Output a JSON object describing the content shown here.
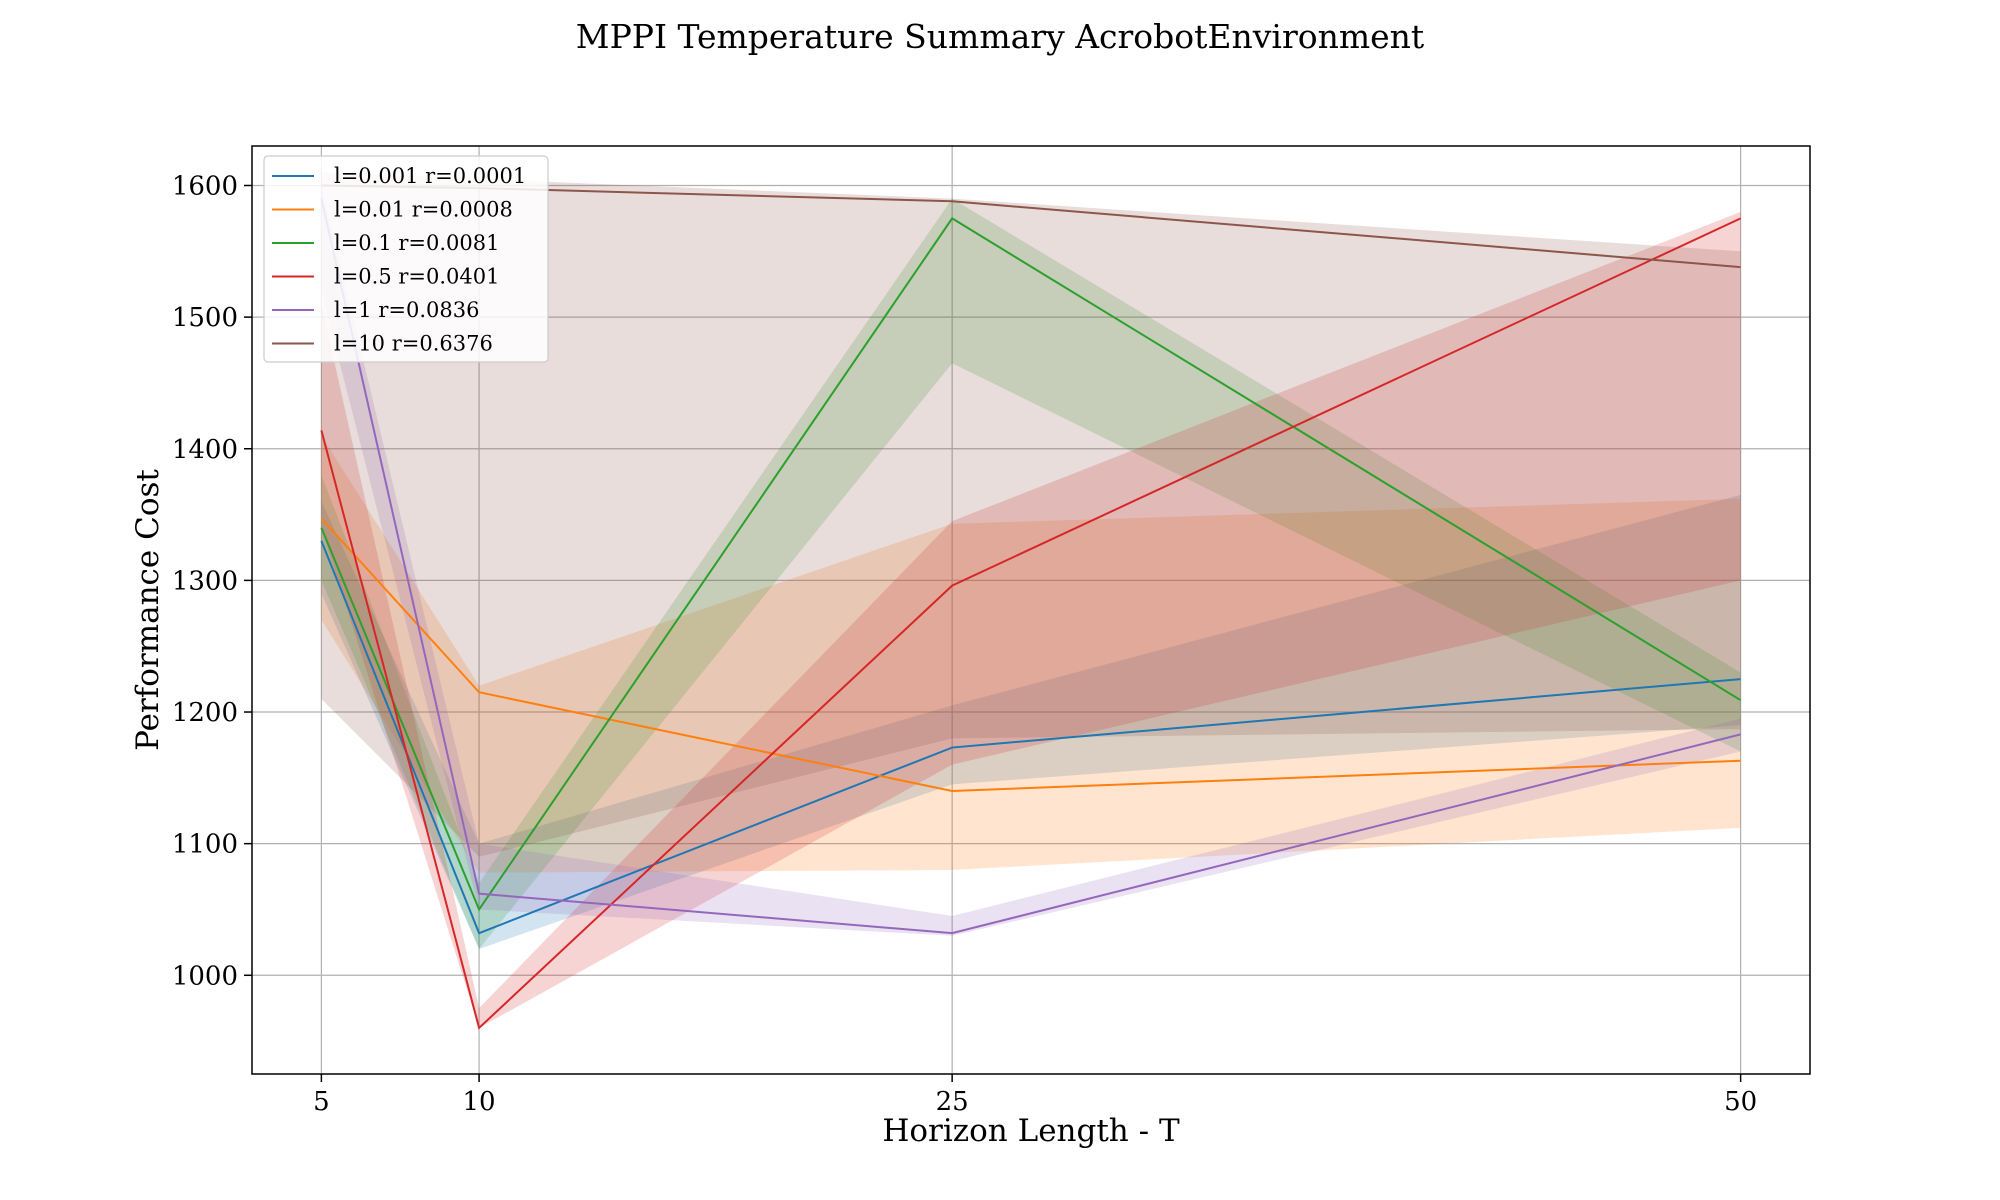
{
  "chart_data": {
    "type": "line",
    "title": "MPPI Temperature Summary AcrobotEnvironment",
    "xlabel": "Horizon Length - T",
    "ylabel": "Performance Cost",
    "x": [
      5,
      10,
      25,
      50
    ],
    "xticks": [
      5,
      10,
      25,
      50
    ],
    "xtick_labels": [
      "5",
      "10",
      "25",
      "50"
    ],
    "yticks": [
      1000,
      1100,
      1200,
      1300,
      1400,
      1500,
      1600
    ],
    "ytick_labels": [
      "1000",
      "1100",
      "1200",
      "1300",
      "1400",
      "1500",
      "1600"
    ],
    "xlim": [
      2.8,
      52.2
    ],
    "ylim": [
      925,
      1630
    ],
    "grid": true,
    "legend_position": "top-left",
    "series": [
      {
        "name": "l=0.001 r=0.0001",
        "color": "#1f77b4",
        "values": [
          1330,
          1032,
          1173,
          1225
        ],
        "lower": [
          1290,
          1020,
          1145,
          1190
        ],
        "upper": [
          1360,
          1100,
          1205,
          1365
        ]
      },
      {
        "name": "l=0.01 r=0.0008",
        "color": "#ff7f0e",
        "values": [
          1347,
          1215,
          1140,
          1163
        ],
        "lower": [
          1270,
          1078,
          1080,
          1112
        ],
        "upper": [
          1410,
          1220,
          1343,
          1362
        ]
      },
      {
        "name": "l=0.1 r=0.0081",
        "color": "#2ca02c",
        "values": [
          1340,
          1050,
          1575,
          1209
        ],
        "lower": [
          1300,
          1020,
          1465,
          1170
        ],
        "upper": [
          1380,
          1070,
          1590,
          1230
        ]
      },
      {
        "name": "l=0.5 r=0.0401",
        "color": "#d62728",
        "values": [
          1414,
          960,
          1296,
          1575
        ],
        "lower": [
          1340,
          960,
          1160,
          1300
        ],
        "upper": [
          1510,
          975,
          1345,
          1580
        ]
      },
      {
        "name": "l=1 r=0.0836",
        "color": "#9467bd",
        "values": [
          1590,
          1062,
          1032,
          1183
        ],
        "lower": [
          1520,
          1050,
          1030,
          1170
        ],
        "upper": [
          1600,
          1100,
          1045,
          1195
        ]
      },
      {
        "name": "l=10 r=0.6376",
        "color": "#8c564b",
        "values": [
          1600,
          1598,
          1588,
          1538
        ],
        "lower": [
          1210,
          1090,
          1180,
          1187
        ],
        "upper": [
          1610,
          1605,
          1590,
          1550
        ]
      }
    ]
  }
}
